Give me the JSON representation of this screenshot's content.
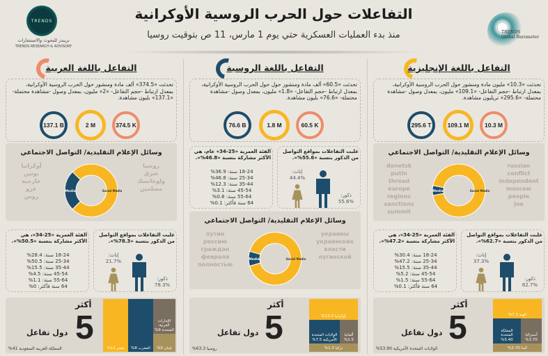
{
  "header": {
    "title": "التفاعلات حول الحرب الروسية الأوكرانية",
    "subtitle": "منذ بدء العمليات العسكرية حتي يوم 1 مارس، 11 ص بتوقيت روسيا",
    "logo_left": {
      "mark": "TRENDS",
      "ar": "تريندز للبحوث والاستشارات",
      "en": "TRENDS RESEARCH & ADVISORY"
    },
    "logo_right": {
      "line1": "TRENDS",
      "line2": "Global Barometer"
    }
  },
  "colors": {
    "navy": "#1e4d6b",
    "yellow": "#f8b722",
    "salmon": "#ee8c6c",
    "tan": "#a8925c",
    "taupe": "#7a6e60"
  },
  "media_labels": {
    "media": "Media",
    "social": "Social Media"
  },
  "columns": [
    {
      "id": "arabic",
      "accent": "#ee8c6c",
      "title": "التفاعل باللغة العربية",
      "summary": "تحدثت «374.5» ألف مادة ومنشور حول الحرب الروسية الأوكرانية، بمعدل ارتباط -حجم التفاعل- «2» مليون، بمعدل وصول -مشاهدة محتملة- «137.1» بليون مشاهدة.",
      "stats": {
        "reach": "137.1 B",
        "engagement": "2 M",
        "posts": "374.5 K"
      },
      "media_title": "وسائل الإعلام التقليدية/ التواصل الاجتماعي",
      "media_share": 0.25,
      "cloud_words": [
        "أوكرانيا",
        "روسيا",
        "بوتين",
        "شرق",
        "خارجية",
        "ولوغانسك",
        "غزو",
        "مسلمين",
        "روس"
      ],
      "age_title": "الفئة العمرية «25-34»، هي الأكثر مشاركة بنسبة «50.5%».",
      "ages": [
        "18-24 سنة: 28.4%",
        "25-34 سنة: 50.5%",
        "35-44 سنة: 15.5%",
        "45-54 سنة: 4.5%",
        "55-64 سنة: 1.1%",
        "64 سنة فأكثر: 0%"
      ],
      "gender_title": "غلبت التفاعلات بمواقع التواصل من الذكور بنسبة «78.3%».",
      "female_label": "إناث:",
      "female": "21.7%",
      "female_share": 0.217,
      "male_label": "ذكور:",
      "male": "78.3%",
      "top5": {
        "more": "أكثر",
        "num": "5",
        "label": "دول تفاعل",
        "first": "المملكة العربية السعودية 41%",
        "others": [
          {
            "name": "مصر 11%",
            "color": "#f8b722"
          },
          {
            "name": "المغرب 8%",
            "color": "#1e4d6b"
          },
          {
            "name": "الإمارات العربية المتحدة 9%",
            "color": "#7a6e60"
          },
          {
            "name": "لبنان 5%",
            "color": "#a8925c"
          }
        ]
      }
    },
    {
      "id": "russian",
      "accent": "#1e4d6b",
      "title": "التفاعل باللغة الروسية",
      "summary": "تحدثت «60.5» ألف مادة ومنشور حول حول الحرب الروسية الأوكرانية، بمعدل ارتباط -حجم التفاعل- «1.8» مليون، بمعدل وصول -مشاهدة محتملة- «76.6» بليون مشاهدة.",
      "stats": {
        "reach": "76.6 B",
        "engagement": "1.8 M",
        "posts": "60.5 K"
      },
      "media_title": "وسائل الإعلام التقليدية/ التواصل الاجتماعي",
      "media_share": 0.09,
      "cloud_words": [
        "путин",
        "украины",
        "россию",
        "украинских",
        "граждан",
        "власти",
        "февраля",
        "луганской",
        "полностью"
      ],
      "age_title": "الفئة العمرية «25-34» عام، هي الأكثر مشاركة بنسبة «46.8%».",
      "ages": [
        "18-24 سنة: 36.9%",
        "25-34 سنة: 46.8%",
        "35-44 سنة: 12.3%",
        "45-54 سنة: 3.1%",
        "55-64 سنة: 0.8%",
        "64 سنة فأكثر: 0.1%"
      ],
      "gender_title": "غلبت التفاعلات بمواقع التواصل من الذكور بنسبة «55.6%».",
      "female_label": "إناث:",
      "female": "44.4%",
      "female_share": 0.444,
      "male_label": "ذكور:",
      "male": "55.6%",
      "top5": {
        "more": "أكثر",
        "num": "5",
        "label": "دول تفاعل",
        "first": "روسيا 63.3%",
        "others": [
          {
            "name": "أوكرانيا 13.3%",
            "color": "#f8b722"
          },
          {
            "name": "الولايات المتحدة الأمريكية 7.5%",
            "color": "#1e4d6b"
          },
          {
            "name": "ألمانيا 1.5%",
            "color": "#7a6e60"
          },
          {
            "name": "تركيا 1.3%",
            "color": "#a8925c"
          }
        ]
      }
    },
    {
      "id": "english",
      "accent": "#f8b722",
      "title": "التفاعل باللغة الإنجليزية",
      "summary": "تحدثت «10.3» مليون مادة ومنشور حول الحرب الروسية الأوكرانية، بمعدل ارتباط -حجم التفاعل- «109.1» مليون، بمعدل وصول -مشاهدة محتملة- «295.6» تريليون مشاهدة.",
      "stats": {
        "reach": "295.6 T",
        "engagement": "109.1 M",
        "posts": "10.3 M"
      },
      "media_title": "وسائل الإعلام التقليدية/ التواصل الاجتماعي",
      "media_share": 0.06,
      "cloud_words": [
        "donetsk",
        "russian",
        "putin",
        "conflict",
        "thread",
        "independent",
        "europe",
        "moscow",
        "regions",
        "people",
        "sanctions",
        "joe",
        "summit"
      ],
      "age_title": "الفئة العمرية «25-34»، هي الأكثر مشاركة بنسبة «47.2%».",
      "ages": [
        "18-24 سنة: 30.4%",
        "25-34 سنة: 47.2%",
        "35-44 سنة: 15.5%",
        "45-54 سنة: 5.2%",
        "55-64 سنة: 1.5%",
        "64 سنة فأكثر: 0.1%"
      ],
      "gender_title": "غلبت التفاعلات بمواقع التواصل من الذكور بنسبة «62.7%».",
      "female_label": "إناث:",
      "female": "37.3%",
      "female_share": 0.373,
      "male_label": "ذكور:",
      "male": "62.7%",
      "top5": {
        "more": "أكثر",
        "num": "5",
        "label": "دول تفاعل",
        "first": "الولايات المتحدة الأمريكية 53.90%",
        "others": [
          {
            "name": "الهند 7.1%",
            "color": "#f8b722"
          },
          {
            "name": "المملكة المتحدة 5.40%",
            "color": "#1e4d6b"
          },
          {
            "name": "أستراليا 3.70%",
            "color": "#7a6e60"
          },
          {
            "name": "كندا 3.70%",
            "color": "#a8925c"
          }
        ]
      }
    }
  ]
}
